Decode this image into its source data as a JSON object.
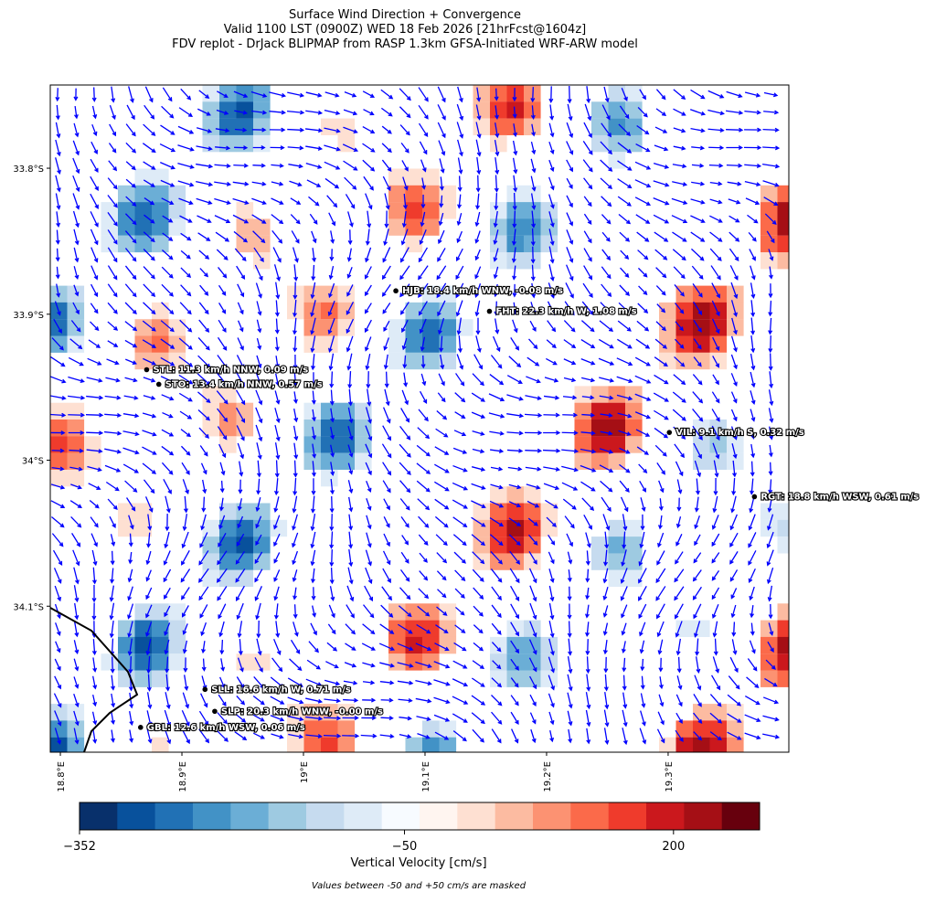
{
  "title": [
    "Surface Wind Direction + Convergence",
    "Valid 1100 LST (0900Z) WED 18 Feb 2026 [21hrFcst@1604z]",
    "FDV replot - DrJack BLIPMAP from RASP 1.3km GFSA-Initiated WRF-ARW model"
  ],
  "map": {
    "xlim": [
      18.7917,
      19.3993
    ],
    "ylim": [
      -34.2,
      -33.743
    ],
    "xticks": [
      {
        "value": 18.8,
        "label": "18.8°E"
      },
      {
        "value": 18.9,
        "label": "18.9°E"
      },
      {
        "value": 19.0,
        "label": "19°E"
      },
      {
        "value": 19.1,
        "label": "19.1°E"
      },
      {
        "value": 19.2,
        "label": "19.2°E"
      },
      {
        "value": 19.3,
        "label": "19.3°E"
      }
    ],
    "yticks": [
      {
        "value": -33.8,
        "label": "33.8°S"
      },
      {
        "value": -33.9,
        "label": "33.9°S"
      },
      {
        "value": -34.0,
        "label": "34°S"
      },
      {
        "value": -34.1,
        "label": "34.1°S"
      }
    ],
    "arrow_color": "#0000ff"
  },
  "stations": [
    {
      "label": "HJB: 18.4 km/h WNW, -0.08 m/s",
      "lon": 19.076,
      "lat": -33.884
    },
    {
      "label": "FHT: 22.3 km/h W, 1.08 m/s",
      "lon": 19.153,
      "lat": -33.898
    },
    {
      "label": "STL: 11.3 km/h NNW, 0.09 m/s",
      "lon": 18.871,
      "lat": -33.938
    },
    {
      "label": "STO: 13.4 km/h NNW, 0.57 m/s",
      "lon": 18.881,
      "lat": -33.948
    },
    {
      "label": "VIL: 9.1 km/h S, 0.32 m/s",
      "lon": 19.301,
      "lat": -33.981
    },
    {
      "label": "RGT: 18.8 km/h WSW, 0.61 m/s",
      "lon": 19.371,
      "lat": -34.025
    },
    {
      "label": "SLL: 16.6 km/h W, 0.71 m/s",
      "lon": 18.919,
      "lat": -34.157
    },
    {
      "label": "SLP: 20.3 km/h WNW, -0.00 m/s",
      "lon": 18.927,
      "lat": -34.172
    },
    {
      "label": "GBL: 12.6 km/h WSW, 0.06 m/s",
      "lon": 18.866,
      "lat": -34.183
    }
  ],
  "colorbar": {
    "label": "Vertical Velocity [cm/s]",
    "lim": [
      -352,
      280
    ],
    "ticks": [
      {
        "value": -352,
        "label": "−352"
      },
      {
        "value": -50,
        "label": "−50"
      },
      200
    ],
    "colors": [
      "#08306b",
      "#08519c",
      "#2171b5",
      "#4292c6",
      "#6baed6",
      "#9ecae1",
      "#c6dbef",
      "#deebf7",
      "#f7fbff",
      "#fff5f0",
      "#fee0d2",
      "#fcbba1",
      "#fc9272",
      "#fb6a4a",
      "#ef3b2c",
      "#cb181d",
      "#a50f15",
      "#67000d"
    ]
  },
  "footnote": "Values between -50 and +50 cm/s are masked"
}
